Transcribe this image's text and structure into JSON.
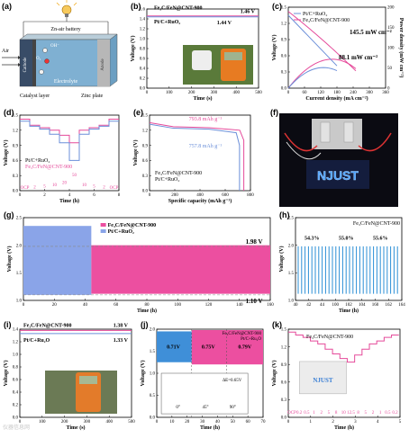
{
  "labels": {
    "a": "(a)",
    "b": "(b)",
    "c": "(c)",
    "d": "(d)",
    "e": "(e)",
    "f": "(f)",
    "g": "(g)",
    "h": "(h)",
    "i": "(i)",
    "j": "(j)",
    "k": "(k)"
  },
  "a": {
    "title": "Zn-air battery",
    "air": "Air",
    "oh": "OH⁻",
    "o2": "O₂",
    "electrolyte": "Electrolyte",
    "catalyst": "Catalyst layer",
    "zinc": "Zinc plate",
    "cathode": "Cathode",
    "anode": "Anode"
  },
  "b": {
    "leg1": "Fe₃C/FeN@CNT-900",
    "leg2": "Pt/C+RuO₂",
    "v1": "1.46 V",
    "v2": "1.44 V",
    "xlabel": "Time (s)",
    "ylabel": "Voltage (V)",
    "xticks": [
      "0",
      "100",
      "200",
      "300",
      "400",
      "500"
    ],
    "yticks": [
      "0.0",
      "0.2",
      "0.4",
      "0.6",
      "0.8",
      "1.0",
      "1.2",
      "1.4",
      "1.6"
    ]
  },
  "c": {
    "leg1": "Pt/C+RuO₂",
    "leg2": "Fe₃C/FeN@CNT-900",
    "p1": "145.5 mW cm⁻²",
    "p2": "88.1 mW cm⁻²",
    "xlabel": "Current density (mA cm⁻²)",
    "ylabel": "Voltage (V)",
    "ylabel2": "Power density (mW cm⁻²)",
    "xticks": [
      "0",
      "60",
      "120",
      "180",
      "240",
      "300",
      "360"
    ],
    "yticks": [
      "0.0",
      "0.3",
      "0.6",
      "0.9",
      "1.2",
      "1.5"
    ],
    "y2ticks": [
      "0",
      "50",
      "100",
      "150",
      "200"
    ]
  },
  "d": {
    "leg1": "Pt/C+RuO₂",
    "leg2": "Fe₃C/FeN@CNT-900",
    "xlabel": "Time (h)",
    "ylabel": "Voltage (V)",
    "ylabel2": "Current density (mA cm⁻²)",
    "xticks": [
      "0",
      "2",
      "4",
      "6",
      "8"
    ],
    "yticks": [
      "0.0",
      "0.3",
      "0.6",
      "0.9",
      "1.2",
      "1.5"
    ],
    "steps": [
      "OCP",
      "2",
      "5",
      "10",
      "20",
      "50",
      "10",
      "5",
      "2",
      "OCP"
    ]
  },
  "e": {
    "v1": "793.8 mAh g⁻¹",
    "v2": "757.8 mAh g⁻¹",
    "leg1": "Fe₃C/FeN@CNT-900",
    "leg2": "Pt/C+RuO₂",
    "xlabel": "Specific capacity (mAh g⁻¹)",
    "ylabel": "Voltage (V)",
    "xticks": [
      "0",
      "200",
      "400",
      "600",
      "800"
    ],
    "yticks": [
      "0.0",
      "0.3",
      "0.6",
      "0.9",
      "1.2",
      "1.5"
    ]
  },
  "f": {
    "sign": "NJUST"
  },
  "g": {
    "leg1": "Fe₃C/FeN@CNT-900",
    "leg2": "Pt/C+RuO₂",
    "v1": "1.98 V",
    "v2": "1.10 V",
    "xlabel": "Time (h)",
    "ylabel": "Voltage (V)",
    "xticks": [
      "0",
      "20",
      "40",
      "60",
      "80",
      "100",
      "120",
      "140",
      "160"
    ],
    "yticks": [
      "1.0",
      "1.5",
      "2.0",
      "2.5"
    ]
  },
  "h": {
    "leg": "Fe₃C/FeN@CNT-900",
    "e1": "54.3%",
    "e2": "55.0%",
    "e3": "55.6%",
    "xlabel": "Time (h)",
    "ylabel": "Voltage (V)",
    "xticks": [
      "40",
      "42",
      "44",
      "100",
      "102",
      "104",
      "160",
      "162",
      "164"
    ],
    "yticks": [
      "1.0",
      "1.5",
      "2.0",
      "2.5"
    ]
  },
  "i": {
    "v1": "1.38 V",
    "v2": "1.33 V",
    "l1": "Fe₃C/FeN@CNT-900",
    "l2": "Pt/C+Ru₂O",
    "xlabel": "Time (s)",
    "ylabel": "Voltage (V)",
    "xticks": [
      "0",
      "100",
      "200",
      "300",
      "400",
      "500"
    ],
    "yticks": [
      "0.0",
      "0.2",
      "0.4",
      "0.6",
      "0.8",
      "1.0",
      "1.2",
      "1.4"
    ]
  },
  "j": {
    "leg1": "Fe₃C/FeN@CNT-900",
    "leg2": "Pt/C+Ru₂O",
    "g1": "0.71V",
    "g2": "0.75V",
    "g3": "0.79V",
    "dE": "ΔE=0.65V",
    "a1": "0°",
    "a2": "45°",
    "a3": "90°",
    "xlabel": "Time (h)",
    "ylabel": "Voltage (V)",
    "xticks": [
      "0",
      "10",
      "20",
      "30",
      "40",
      "50",
      "60",
      "70"
    ],
    "yticks": [
      "0.0",
      "0.5",
      "1.0",
      "1.5",
      "2.0"
    ]
  },
  "k": {
    "leg": "Fe₃C/FeN@CNT-900",
    "sign": "NJUST",
    "xlabel": "Time (h)",
    "ylabel": "Voltage (V)",
    "xticks": [
      "0",
      "1",
      "2",
      "3",
      "4",
      "5"
    ],
    "yticks": [
      "0.0",
      "0.3",
      "0.6",
      "0.9",
      "1.2",
      "1.5"
    ],
    "steps": [
      "OCP",
      "0.2",
      "0.5",
      "1",
      "2",
      "5",
      "8",
      "10",
      "12.5",
      "8",
      "5",
      "2",
      "1",
      "0.5",
      "0.2"
    ]
  },
  "watermark": "仪器信息网"
}
